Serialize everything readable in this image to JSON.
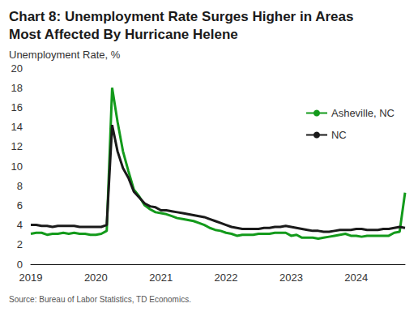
{
  "chart_data": {
    "type": "line",
    "title": "Chart 8: Unemployment Rate Surges Higher in Areas Most Affected By Hurricane Helene",
    "y_label": "Unemployment Rate, %",
    "source": "Source: Bureau of Labor Statistics, TD Economics.",
    "categories": [
      "2019",
      null,
      null,
      null,
      null,
      null,
      null,
      null,
      null,
      null,
      null,
      null,
      "2020",
      null,
      null,
      null,
      null,
      null,
      null,
      null,
      null,
      null,
      null,
      null,
      "2021",
      null,
      null,
      null,
      null,
      null,
      null,
      null,
      null,
      null,
      null,
      null,
      "2022",
      null,
      null,
      null,
      null,
      null,
      null,
      null,
      null,
      null,
      null,
      null,
      "2023",
      null,
      null,
      null,
      null,
      null,
      null,
      null,
      null,
      null,
      null,
      null,
      "2024",
      null,
      null,
      null,
      null,
      null,
      null,
      null,
      null,
      null
    ],
    "series": [
      {
        "name": "Asheville, NC",
        "color": "#139a1b",
        "values": [
          3.1,
          3.2,
          3.2,
          3.0,
          3.1,
          3.1,
          3.2,
          3.1,
          3.2,
          3.1,
          3.1,
          3.0,
          3.0,
          3.1,
          3.4,
          18.0,
          14.5,
          11.5,
          9.5,
          7.6,
          6.9,
          6.0,
          5.6,
          5.3,
          5.2,
          5.1,
          4.9,
          4.7,
          4.6,
          4.5,
          4.4,
          4.2,
          4.0,
          3.7,
          3.5,
          3.4,
          3.2,
          3.1,
          2.9,
          3.0,
          3.0,
          3.0,
          3.1,
          3.1,
          3.1,
          3.2,
          3.2,
          3.2,
          2.9,
          3.0,
          2.7,
          2.7,
          2.7,
          2.6,
          2.7,
          2.8,
          2.9,
          3.0,
          3.1,
          2.9,
          2.9,
          2.8,
          2.9,
          2.9,
          2.9,
          2.9,
          2.9,
          3.2,
          3.3,
          7.3
        ]
      },
      {
        "name": "NC",
        "color": "#1a1a1a",
        "values": [
          4.0,
          4.0,
          3.9,
          3.9,
          3.8,
          3.9,
          3.9,
          3.9,
          3.9,
          3.8,
          3.8,
          3.8,
          3.8,
          3.8,
          4.0,
          14.2,
          11.5,
          9.8,
          8.8,
          7.4,
          6.8,
          6.2,
          5.9,
          5.8,
          5.5,
          5.5,
          5.4,
          5.3,
          5.2,
          5.1,
          5.0,
          4.9,
          4.8,
          4.6,
          4.4,
          4.2,
          4.0,
          3.8,
          3.7,
          3.6,
          3.6,
          3.6,
          3.6,
          3.7,
          3.7,
          3.8,
          3.8,
          3.9,
          3.8,
          3.7,
          3.6,
          3.5,
          3.4,
          3.4,
          3.3,
          3.3,
          3.4,
          3.5,
          3.5,
          3.5,
          3.6,
          3.6,
          3.5,
          3.5,
          3.5,
          3.6,
          3.6,
          3.7,
          3.8,
          3.7
        ]
      }
    ],
    "ylim": [
      0,
      20
    ],
    "yticks": [
      0,
      2,
      4,
      6,
      8,
      10,
      12,
      14,
      16,
      18,
      20
    ],
    "grid": false,
    "legend": "upper right"
  }
}
